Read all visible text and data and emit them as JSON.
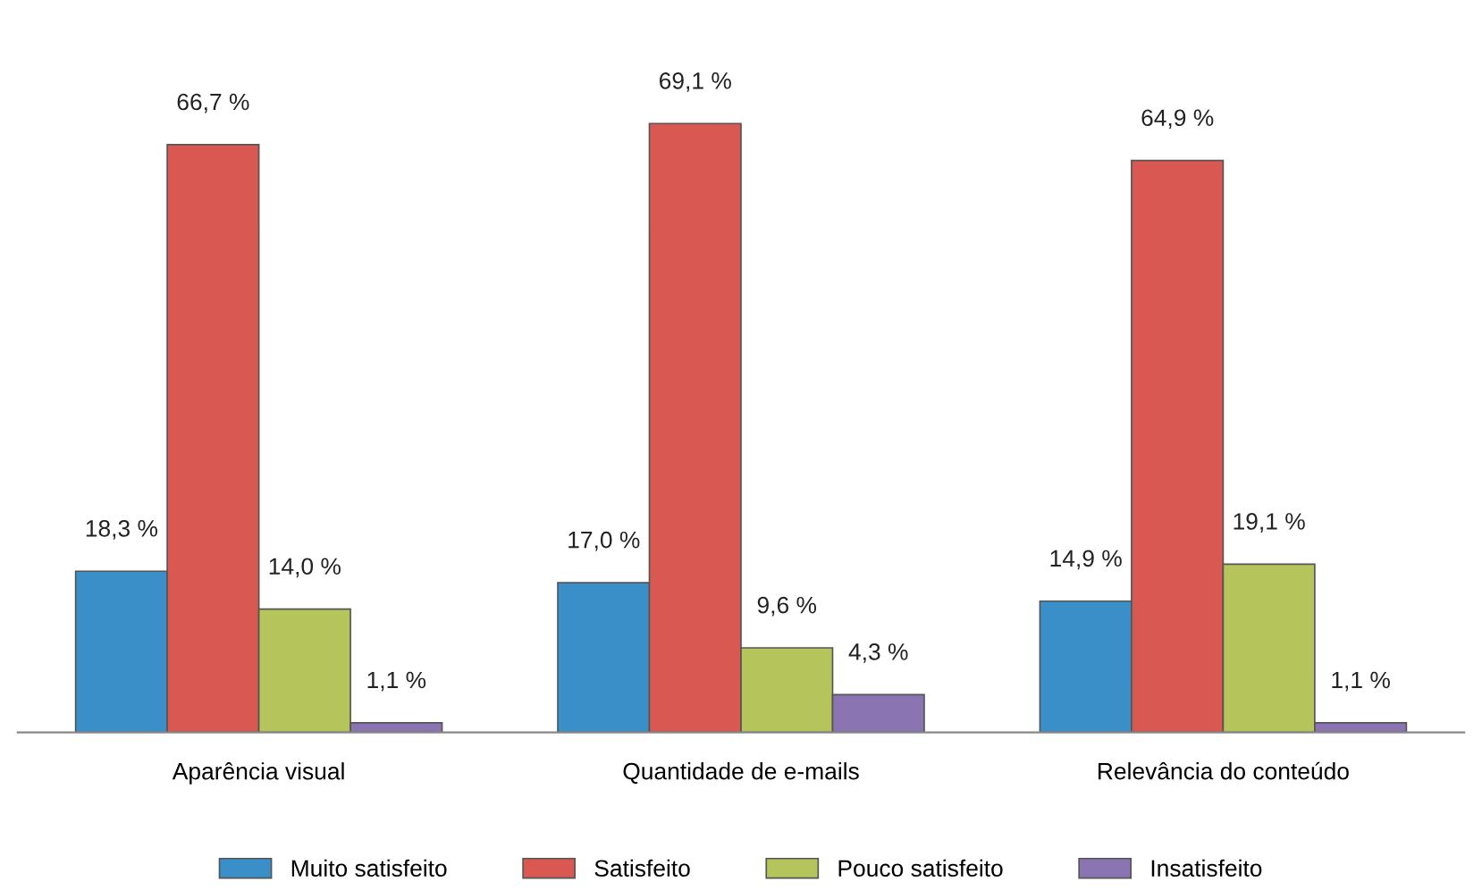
{
  "chart_data": {
    "type": "bar",
    "categories": [
      "Aparência visual",
      "Quantidade de e-mails",
      "Relevância do conteúdo"
    ],
    "series": [
      {
        "name": "Muito satisfeito",
        "color": "#3a8fc8",
        "values": [
          18.3,
          17.0,
          14.9
        ],
        "value_labels": [
          "18,3 %",
          "17,0 %",
          "14,9 %"
        ]
      },
      {
        "name": "Satisfeito",
        "color": "#d95852",
        "values": [
          66.7,
          69.1,
          64.9
        ],
        "value_labels": [
          "66,7 %",
          "69,1 %",
          "64,9 %"
        ]
      },
      {
        "name": "Pouco satisfeito",
        "color": "#b6c55b",
        "values": [
          14.0,
          9.6,
          19.1
        ],
        "value_labels": [
          "14,0 %",
          "9,6 %",
          "19,1 %"
        ]
      },
      {
        "name": "Insatisfeito",
        "color": "#8a74b1",
        "values": [
          1.1,
          4.3,
          1.1
        ],
        "value_labels": [
          "1,1 %",
          "4,3 %",
          "1,1 %"
        ]
      }
    ],
    "legend": "bottom",
    "grid": false
  }
}
